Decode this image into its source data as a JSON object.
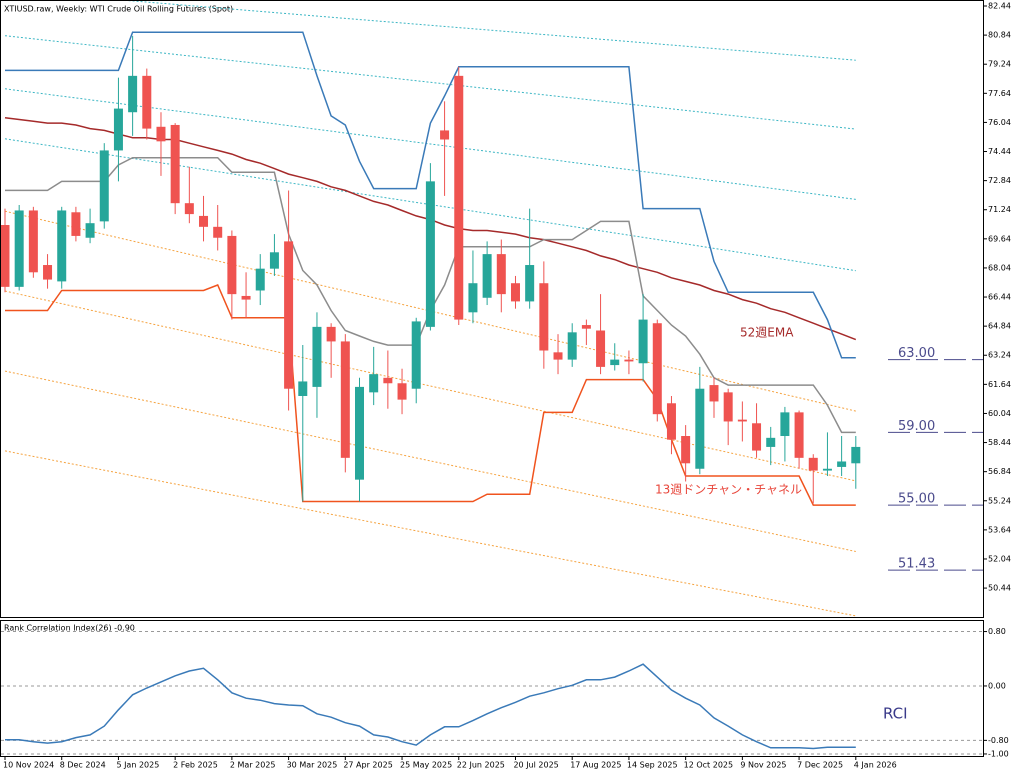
{
  "chart_data": [
    {
      "type": "candlestick",
      "title": "XTIUSD.raw, Weekly:  WTI Crude Oil Rolling Futures (Spot)",
      "categories": [
        "10 Nov 2024",
        null,
        null,
        null,
        "8 Dec 2024",
        null,
        null,
        null,
        "5 Jan 2025",
        null,
        null,
        null,
        "2 Feb 2025",
        null,
        null,
        null,
        "2 Mar 2025",
        null,
        null,
        null,
        "30 Mar 2025",
        null,
        null,
        null,
        "27 Apr 2025",
        null,
        null,
        null,
        "25 May 2025",
        null,
        null,
        null,
        "22 Jun 2025",
        null,
        null,
        null,
        "20 Jul 2025",
        null,
        null,
        null,
        "17 Aug 2025",
        null,
        null,
        null,
        "14 Sep 2025",
        null,
        null,
        null,
        "12 Oct 2025",
        null,
        null,
        null,
        "9 Nov 2025",
        null,
        null,
        null,
        "7 Dec 2025",
        null,
        null,
        null,
        "4 Jan 2026"
      ],
      "open": [
        70.4,
        67.0,
        71.2,
        68.2,
        67.3,
        71.1,
        69.7,
        70.6,
        74.5,
        76.6,
        78.6,
        75.8,
        75.9,
        71.6,
        70.9,
        70.3,
        69.8,
        66.5,
        66.8,
        68.0,
        69.5,
        61.0,
        61.5,
        64.8,
        64.0,
        56.4,
        61.2,
        62.0,
        61.7,
        61.4,
        64.8,
        75.6,
        78.6,
        65.6,
        66.4,
        68.8,
        67.2,
        66.2,
        67.2,
        63.4,
        63.0,
        64.9,
        64.6,
        62.7,
        63.0,
        62.8,
        65.0,
        60.6,
        58.8,
        57.0,
        61.6,
        61.2,
        59.7,
        59.5,
        58.2,
        58.8,
        60.1,
        57.6,
        56.9,
        57.1,
        57.3
      ],
      "high": [
        71.3,
        71.5,
        71.4,
        68.8,
        71.4,
        71.4,
        71.3,
        74.9,
        78.5,
        80.8,
        79.0,
        76.6,
        76.0,
        73.6,
        72.0,
        71.5,
        70.1,
        67.8,
        68.8,
        69.9,
        72.3,
        63.8,
        65.6,
        65.0,
        64.4,
        62.0,
        63.7,
        63.5,
        62.5,
        65.3,
        73.8,
        77.2,
        79.1,
        69.0,
        69.5,
        69.6,
        67.6,
        71.3,
        68.4,
        64.4,
        65.0,
        65.2,
        66.6,
        63.9,
        63.5,
        66.6,
        65.2,
        61.0,
        59.4,
        62.6,
        62.0,
        61.4,
        60.7,
        60.6,
        59.3,
        60.4,
        60.2,
        57.8,
        59.0,
        58.8,
        58.8
      ],
      "low": [
        66.7,
        66.8,
        67.5,
        66.9,
        66.9,
        69.5,
        69.4,
        70.2,
        72.8,
        75.3,
        75.1,
        73.1,
        71.0,
        70.5,
        69.5,
        69.0,
        65.2,
        65.3,
        66.0,
        67.6,
        60.2,
        55.2,
        59.8,
        62.0,
        56.8,
        55.2,
        60.5,
        60.3,
        60.0,
        60.6,
        64.6,
        72.0,
        64.9,
        65.0,
        66.0,
        65.6,
        65.8,
        65.8,
        62.5,
        62.2,
        62.6,
        63.8,
        62.2,
        62.4,
        62.2,
        61.8,
        59.6,
        57.8,
        56.3,
        56.7,
        59.8,
        58.3,
        58.5,
        57.6,
        57.2,
        57.4,
        57.0,
        55.1,
        56.6,
        56.6,
        55.9
      ],
      "close": [
        67.0,
        71.2,
        67.8,
        67.4,
        71.2,
        69.8,
        70.5,
        74.5,
        76.8,
        78.6,
        75.7,
        75.0,
        71.6,
        71.0,
        70.3,
        69.7,
        66.6,
        66.3,
        68.0,
        68.9,
        61.4,
        61.8,
        64.8,
        64.0,
        57.6,
        61.5,
        62.2,
        61.7,
        60.8,
        65.1,
        72.8,
        75.1,
        65.2,
        67.2,
        68.8,
        66.6,
        66.2,
        68.2,
        63.5,
        63.0,
        64.5,
        64.7,
        62.6,
        63.0,
        62.9,
        65.2,
        60.0,
        58.6,
        57.3,
        61.4,
        60.7,
        59.6,
        59.6,
        58.0,
        58.7,
        60.1,
        57.6,
        56.9,
        57.0,
        57.4,
        58.2
      ],
      "up_color": "#26a69a",
      "down_color": "#ef5350",
      "lines": [
        {
          "color": "#a52a2a",
          "values": [
            76.3,
            76.2,
            76.1,
            76.0,
            76.0,
            75.9,
            75.7,
            75.6,
            75.4,
            75.2,
            75.2,
            75.1,
            75.1,
            74.9,
            74.7,
            74.5,
            74.3,
            74.0,
            73.8,
            73.5,
            73.2,
            73.0,
            72.8,
            72.5,
            72.3,
            72.0,
            71.7,
            71.5,
            71.2,
            70.9,
            70.7,
            70.4,
            70.2,
            70.1,
            70.1,
            70.0,
            69.9,
            69.7,
            69.6,
            69.4,
            69.2,
            69.0,
            68.7,
            68.5,
            68.2,
            68.0,
            67.8,
            67.5,
            67.3,
            67.1,
            66.8,
            66.6,
            66.3,
            66.1,
            65.8,
            65.6,
            65.3,
            65.0,
            64.7,
            64.4,
            64.1
          ]
        },
        {
          "color": "#3a7ab8",
          "values": [
            78.9,
            78.9,
            78.9,
            78.9,
            78.9,
            78.9,
            78.9,
            78.9,
            78.9,
            81.0,
            81.0,
            81.0,
            81.0,
            81.0,
            81.0,
            81.0,
            81.0,
            81.0,
            81.0,
            81.0,
            81.0,
            81.0,
            78.6,
            76.4,
            75.9,
            73.9,
            72.4,
            72.4,
            72.4,
            72.4,
            76.0,
            77.5,
            79.1,
            79.1,
            79.1,
            79.1,
            79.1,
            79.1,
            79.1,
            79.1,
            79.1,
            79.1,
            79.1,
            79.1,
            79.1,
            71.3,
            71.3,
            71.3,
            71.3,
            71.3,
            68.4,
            66.7,
            66.7,
            66.7,
            66.7,
            66.7,
            66.7,
            66.7,
            65.2,
            63.1,
            63.1
          ]
        },
        {
          "color": "#8c8c8c",
          "values": [
            72.3,
            72.3,
            72.3,
            72.3,
            72.8,
            72.8,
            72.8,
            72.8,
            73.7,
            74.1,
            74.1,
            74.1,
            74.1,
            74.1,
            74.1,
            74.1,
            73.3,
            73.3,
            73.3,
            73.3,
            69.9,
            67.9,
            67.1,
            65.7,
            64.6,
            64.3,
            64.0,
            63.8,
            63.8,
            63.8,
            65.7,
            67.1,
            69.2,
            69.2,
            69.2,
            69.2,
            69.2,
            69.2,
            69.6,
            69.6,
            69.6,
            70.1,
            70.6,
            70.6,
            70.6,
            66.5,
            65.7,
            64.9,
            64.3,
            63.3,
            62.0,
            61.6,
            61.6,
            61.6,
            61.6,
            61.6,
            61.6,
            61.6,
            60.5,
            59.0,
            59.0
          ]
        },
        {
          "color": "#f0531e",
          "values": [
            65.7,
            65.7,
            65.7,
            65.7,
            66.8,
            66.8,
            66.8,
            66.8,
            66.8,
            66.8,
            66.8,
            66.8,
            66.8,
            66.8,
            66.8,
            67.1,
            65.3,
            65.3,
            65.3,
            65.3,
            65.3,
            55.2,
            55.2,
            55.2,
            55.2,
            55.2,
            55.2,
            55.2,
            55.2,
            55.2,
            55.2,
            55.2,
            55.2,
            55.2,
            55.6,
            55.6,
            55.6,
            55.6,
            60.1,
            60.1,
            60.1,
            61.9,
            61.9,
            61.9,
            61.9,
            61.9,
            60.8,
            58.6,
            56.6,
            56.6,
            56.6,
            56.6,
            56.6,
            56.6,
            56.6,
            56.6,
            56.6,
            55.0,
            55.0,
            55.0,
            55.0
          ]
        }
      ],
      "band_x": [
        "10 Nov 2024",
        "2 Feb 2025",
        "27 Apr 2025",
        "20 Jul 2025",
        "12 Oct 2025",
        "4 Jan 2026"
      ],
      "bands": [
        {
          "color": "#3cb6c4",
          "values": [
            83.3,
            82.53,
            81.76,
            81.0,
            80.23,
            79.46
          ]
        },
        {
          "color": "#3cb6c4",
          "values": [
            80.81,
            79.78,
            78.76,
            77.73,
            76.7,
            75.67
          ]
        },
        {
          "color": "#3cb6c4",
          "values": [
            77.89,
            76.68,
            75.46,
            74.25,
            73.04,
            71.81
          ]
        },
        {
          "color": "#3cb6c4",
          "values": [
            75.14,
            73.7,
            72.24,
            70.8,
            69.36,
            67.89
          ]
        },
        {
          "color": "#f5a340",
          "values": [
            71.16,
            68.97,
            66.77,
            64.57,
            62.37,
            60.17
          ]
        },
        {
          "color": "#f5a340",
          "values": [
            66.77,
            64.68,
            62.59,
            60.51,
            58.42,
            56.33
          ]
        },
        {
          "color": "#f5a340",
          "values": [
            62.37,
            60.4,
            58.42,
            56.44,
            54.46,
            52.45
          ]
        },
        {
          "color": "#f5a340",
          "values": [
            57.98,
            56.16,
            54.35,
            52.53,
            50.72,
            48.91
          ]
        }
      ],
      "levels": [
        {
          "value": 63,
          "label": "63.00"
        },
        {
          "value": 59,
          "label": "59.00"
        },
        {
          "value": 55,
          "label": "55.00"
        },
        {
          "value": 51.43,
          "label": "51.43"
        }
      ],
      "level_color": "#4b4b8c",
      "annotations": [
        {
          "text": "52週EMA",
          "color": "#a52a2a"
        },
        {
          "text": "13週ドンチャン・チャネル",
          "color": "#e8453a"
        }
      ],
      "ylim": [
        48.85,
        82.77
      ],
      "yticks": [
        82.44,
        80.84,
        79.24,
        77.64,
        76.04,
        74.44,
        72.84,
        71.24,
        69.64,
        68.04,
        66.44,
        64.84,
        63.24,
        61.64,
        60.04,
        58.44,
        56.84,
        55.24,
        53.64,
        52.04,
        50.44
      ]
    },
    {
      "type": "line",
      "title": "Rank Correlation Index(26) -0.90",
      "annotation": "RCI",
      "color": "#3a7ab8",
      "values": [
        -0.79,
        -0.79,
        -0.82,
        -0.84,
        -0.82,
        -0.76,
        -0.72,
        -0.59,
        -0.35,
        -0.13,
        -0.03,
        0.06,
        0.15,
        0.22,
        0.26,
        0.09,
        -0.1,
        -0.18,
        -0.21,
        -0.26,
        -0.28,
        -0.29,
        -0.41,
        -0.46,
        -0.54,
        -0.59,
        -0.72,
        -0.75,
        -0.82,
        -0.87,
        -0.72,
        -0.6,
        -0.6,
        -0.51,
        -0.41,
        -0.32,
        -0.24,
        -0.15,
        -0.1,
        -0.04,
        0.01,
        0.09,
        0.09,
        0.13,
        0.22,
        0.32,
        0.13,
        -0.06,
        -0.18,
        -0.28,
        -0.47,
        -0.59,
        -0.72,
        -0.82,
        -0.91,
        -0.91,
        -0.91,
        -0.92,
        -0.9,
        -0.9,
        -0.9
      ],
      "ylim": [
        -1.03,
        0.97
      ],
      "yticks": [
        {
          "value": 0.8,
          "label": "0.80"
        },
        {
          "value": 0,
          "label": "0.00"
        },
        {
          "value": -0.8,
          "label": "-0.80"
        },
        {
          "value": -1,
          "label": "-1.00"
        }
      ]
    }
  ]
}
